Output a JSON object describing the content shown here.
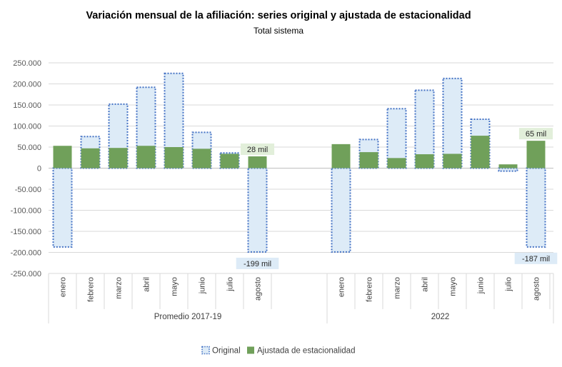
{
  "chart_data": {
    "type": "bar",
    "title": "Variación mensual de la afiliación: series original y ajustada de estacionalidad",
    "subtitle": "Total sistema",
    "ylim": [
      -250000,
      250000
    ],
    "yticks": [
      250000,
      200000,
      150000,
      100000,
      50000,
      0,
      -50000,
      -100000,
      -150000,
      -200000,
      -250000
    ],
    "ytick_labels": [
      "250.000",
      "200.000",
      "150.000",
      "100.000",
      "50.000",
      "0",
      "-50.000",
      "-100.000",
      "-150.000",
      "-200.000",
      "-250.000"
    ],
    "grid": true,
    "legend_position": "bottom",
    "groups": [
      {
        "label": "Promedio 2017-19",
        "categories": [
          "enero",
          "febrero",
          "marzo",
          "abril",
          "mayo",
          "junio",
          "julio",
          "agosto"
        ]
      },
      {
        "label": "2022",
        "categories": [
          "enero",
          "febrero",
          "marzo",
          "abril",
          "mayo",
          "junio",
          "julio",
          "agosto"
        ]
      }
    ],
    "series": [
      {
        "name": "Original",
        "style": "dotted",
        "color": "#DDEBF7",
        "border_color": "#4472C4",
        "values": [
          [
            -187000,
            75000,
            152000,
            192000,
            225000,
            85000,
            36000,
            -199000
          ],
          [
            -199000,
            68000,
            141000,
            185000,
            213000,
            116000,
            -7000,
            -187000
          ]
        ]
      },
      {
        "name": "Ajustada de estacionalidad",
        "style": "solid",
        "color": "#70A05A",
        "values": [
          [
            53000,
            47000,
            48000,
            53000,
            50000,
            46000,
            34000,
            28000
          ],
          [
            57000,
            38000,
            24000,
            33000,
            34000,
            77000,
            9000,
            65000
          ]
        ]
      }
    ],
    "annotations": [
      {
        "text": "28 mil",
        "group": 0,
        "category": 7,
        "series": "Ajustada de estacionalidad",
        "style": "green"
      },
      {
        "text": "-199 mil",
        "group": 0,
        "category": 7,
        "series": "Original",
        "style": "blue"
      },
      {
        "text": "65 mil",
        "group": 1,
        "category": 7,
        "series": "Ajustada de estacionalidad",
        "style": "green"
      },
      {
        "text": "-187 mil",
        "group": 1,
        "category": 7,
        "series": "Original",
        "style": "blue"
      }
    ]
  }
}
